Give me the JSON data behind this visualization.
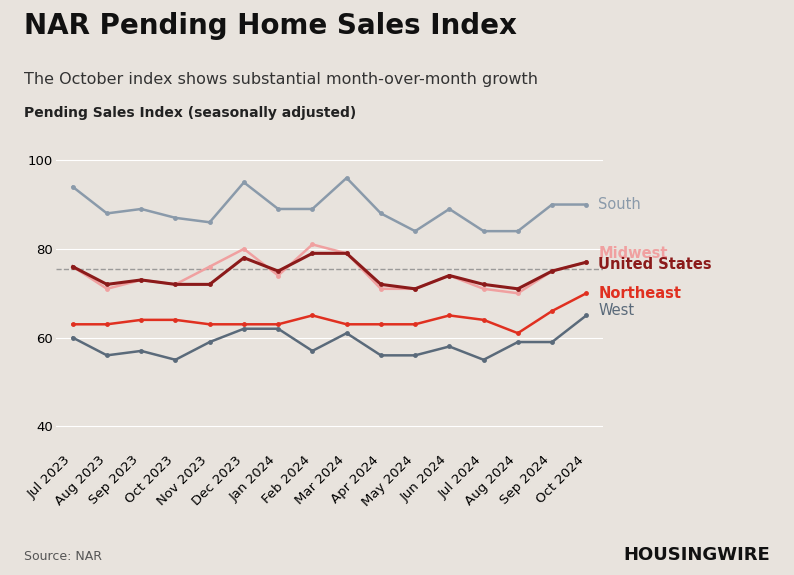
{
  "title": "NAR Pending Home Sales Index",
  "subtitle": "The October index shows substantial month-over-month growth",
  "ylabel": "Pending Sales Index (seasonally adjusted)",
  "source": "Source: NAR",
  "background_color": "#e8e3dd",
  "plot_bg_color": "#e8e3dd",
  "ylim": [
    35,
    105
  ],
  "yticks": [
    40,
    60,
    80,
    100
  ],
  "dashed_line_y": 75.4,
  "months": [
    "Jul 2023",
    "Aug 2023",
    "Sep 2023",
    "Oct 2023",
    "Nov 2023",
    "Dec 2023",
    "Jan 2024",
    "Feb 2024",
    "Mar 2024",
    "Apr 2024",
    "May 2024",
    "Jun 2024",
    "Jul 2024",
    "Aug 2024",
    "Sep 2024",
    "Oct 2024"
  ],
  "series": {
    "South": {
      "values": [
        94,
        88,
        89,
        87,
        86,
        95,
        89,
        89,
        96,
        88,
        84,
        89,
        84,
        84,
        90,
        90
      ],
      "color": "#8a9aaa",
      "linewidth": 1.8,
      "marker": "o",
      "markersize": 3.5,
      "zorder": 2,
      "label_color": "#8a9aaa",
      "label_fontweight": "normal"
    },
    "Midwest": {
      "values": [
        76,
        71,
        73,
        72,
        76,
        80,
        74,
        81,
        79,
        71,
        71,
        74,
        71,
        70,
        75,
        77
      ],
      "color": "#f0a0a0",
      "linewidth": 1.8,
      "marker": "o",
      "markersize": 3.5,
      "zorder": 3,
      "label_color": "#f0a0a0",
      "label_fontweight": "bold"
    },
    "United States": {
      "values": [
        76,
        72,
        73,
        72,
        72,
        78,
        75,
        79,
        79,
        72,
        71,
        74,
        72,
        71,
        75,
        77
      ],
      "color": "#8b1a1a",
      "linewidth": 2.2,
      "marker": "o",
      "markersize": 3.5,
      "zorder": 4,
      "label_color": "#8b1a1a",
      "label_fontweight": "bold"
    },
    "Northeast": {
      "values": [
        63,
        63,
        64,
        64,
        63,
        63,
        63,
        65,
        63,
        63,
        63,
        65,
        64,
        61,
        66,
        70
      ],
      "color": "#e03020",
      "linewidth": 1.8,
      "marker": "o",
      "markersize": 3.5,
      "zorder": 3,
      "label_color": "#e03020",
      "label_fontweight": "bold"
    },
    "West": {
      "values": [
        60,
        56,
        57,
        55,
        59,
        62,
        62,
        57,
        61,
        56,
        56,
        58,
        55,
        59,
        59,
        65
      ],
      "color": "#5a6a7a",
      "linewidth": 1.8,
      "marker": "o",
      "markersize": 3.5,
      "zorder": 2,
      "label_color": "#5a6a7a",
      "label_fontweight": "normal"
    }
  },
  "legend_order": [
    "South",
    "Midwest",
    "United States",
    "Northeast",
    "West"
  ],
  "legend_y_positions": [
    90,
    79,
    76.5,
    70,
    66
  ],
  "housingwire_text": "HOUSINGWIRE",
  "title_fontsize": 20,
  "subtitle_fontsize": 11.5,
  "ylabel_fontsize": 10,
  "tick_fontsize": 9.5,
  "legend_fontsize": 10.5
}
